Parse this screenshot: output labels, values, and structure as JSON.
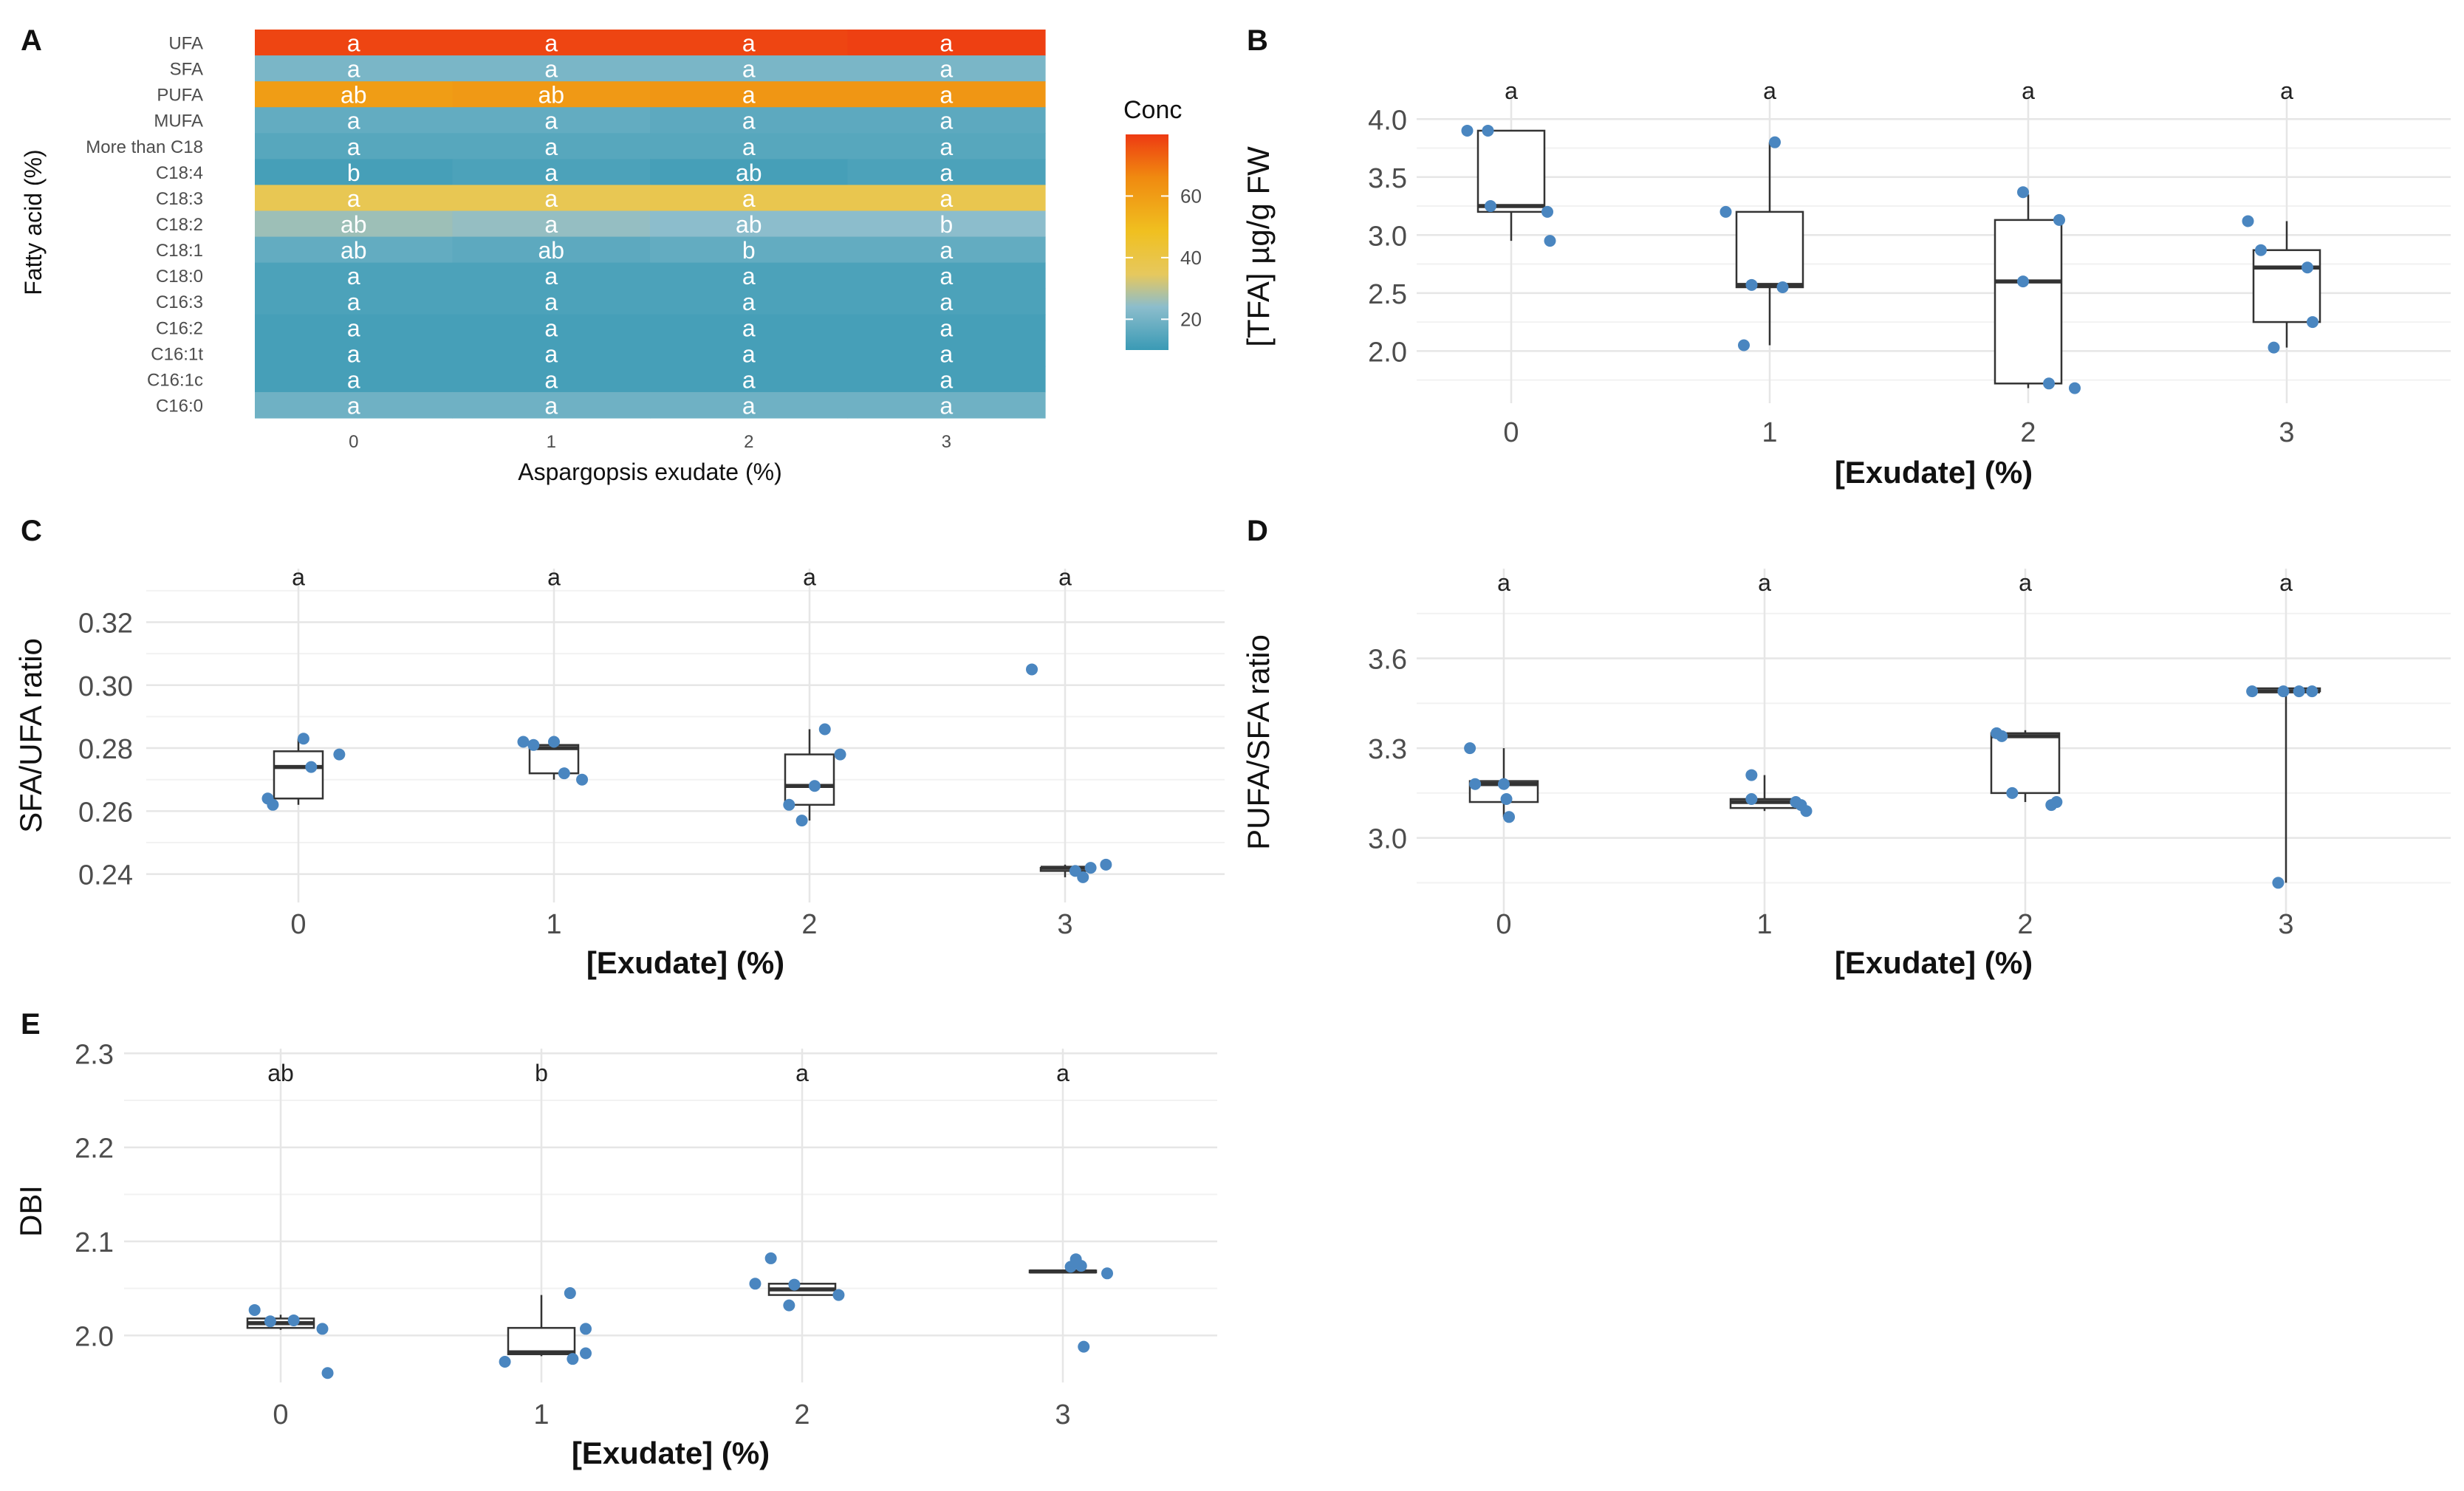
{
  "chart_data": [
    {
      "panel": "A",
      "type": "heatmap",
      "xlabel": "Aspargopsis exudate (%)",
      "ylabel": "Fatty acid (%)",
      "x_categories": [
        "0",
        "1",
        "2",
        "3"
      ],
      "rows": [
        "UFA",
        "SFA",
        "PUFA",
        "MUFA",
        "More than C18",
        "C18:4",
        "C18:3",
        "C18:2",
        "C18:1",
        "C18:0",
        "C16:3",
        "C16:2",
        "C16:1t",
        "C16:1c",
        "C16:0"
      ],
      "values": [
        [
          78,
          78,
          78,
          79
        ],
        [
          21,
          21,
          21,
          21
        ],
        [
          60,
          61,
          62,
          62
        ],
        [
          17,
          17,
          16,
          16
        ],
        [
          15,
          15,
          15,
          15
        ],
        [
          12,
          13,
          12,
          13
        ],
        [
          37,
          37,
          38,
          38
        ],
        [
          26,
          25,
          24,
          24
        ],
        [
          17,
          16,
          17,
          17
        ],
        [
          13,
          13,
          13,
          13
        ],
        [
          13,
          13,
          13,
          13
        ],
        [
          12,
          12,
          12,
          12
        ],
        [
          12,
          12,
          12,
          12
        ],
        [
          12,
          12,
          12,
          12
        ],
        [
          19,
          19,
          19,
          19
        ]
      ],
      "letters": [
        [
          "a",
          "a",
          "a",
          "a"
        ],
        [
          "a",
          "a",
          "a",
          "a"
        ],
        [
          "ab",
          "ab",
          "a",
          "a"
        ],
        [
          "a",
          "a",
          "a",
          "a"
        ],
        [
          "a",
          "a",
          "a",
          "a"
        ],
        [
          "b",
          "a",
          "ab",
          "a"
        ],
        [
          "a",
          "a",
          "a",
          "a"
        ],
        [
          "ab",
          "a",
          "ab",
          "b"
        ],
        [
          "ab",
          "ab",
          "b",
          "a"
        ],
        [
          "a",
          "a",
          "a",
          "a"
        ],
        [
          "a",
          "a",
          "a",
          "a"
        ],
        [
          "a",
          "a",
          "a",
          "a"
        ],
        [
          "a",
          "a",
          "a",
          "a"
        ],
        [
          "a",
          "a",
          "a",
          "a"
        ],
        [
          "a",
          "a",
          "a",
          "a"
        ]
      ],
      "legend": {
        "title": "Conc",
        "ticks": [
          20,
          40,
          60
        ],
        "range": [
          10,
          80
        ]
      }
    },
    {
      "panel": "B",
      "type": "box",
      "xlabel": "[Exudate] (%)",
      "ylabel": "[TFA] µg/g FW",
      "categories": [
        "0",
        "1",
        "2",
        "3"
      ],
      "yticks": [
        2.0,
        2.5,
        3.0,
        3.5,
        4.0
      ],
      "ytick_labels": [
        "2.0",
        "2.5",
        "3.0",
        "3.5",
        "4.0"
      ],
      "ylim": [
        1.55,
        4.25
      ],
      "letter_y": 4.25,
      "letters": [
        "a",
        "a",
        "a",
        "a"
      ],
      "boxes": [
        {
          "q1": 3.2,
          "median": 3.25,
          "q3": 3.9,
          "lo": 2.95,
          "hi": 3.9
        },
        {
          "q1": 2.55,
          "median": 2.57,
          "q3": 3.2,
          "lo": 2.05,
          "hi": 3.8
        },
        {
          "q1": 1.72,
          "median": 2.6,
          "q3": 3.13,
          "lo": 1.68,
          "hi": 3.35
        },
        {
          "q1": 2.25,
          "median": 2.72,
          "q3": 2.87,
          "lo": 2.03,
          "hi": 3.12
        }
      ],
      "points": [
        [
          [
            -0.17,
            3.9
          ],
          [
            -0.09,
            3.9
          ],
          [
            -0.08,
            3.25
          ],
          [
            0.14,
            3.2
          ],
          [
            0.15,
            2.95
          ]
        ],
        [
          [
            -0.17,
            3.2
          ],
          [
            -0.1,
            2.05
          ],
          [
            -0.07,
            2.57
          ],
          [
            0.02,
            3.8
          ],
          [
            0.05,
            2.55
          ]
        ],
        [
          [
            -0.02,
            3.37
          ],
          [
            -0.02,
            2.6
          ],
          [
            0.08,
            1.72
          ],
          [
            0.12,
            3.13
          ],
          [
            0.18,
            1.68
          ]
        ],
        [
          [
            -0.15,
            3.12
          ],
          [
            -0.1,
            2.87
          ],
          [
            -0.05,
            2.03
          ],
          [
            0.08,
            2.72
          ],
          [
            0.1,
            2.25
          ]
        ]
      ]
    },
    {
      "panel": "C",
      "type": "box",
      "xlabel": "[Exudate] (%)",
      "ylabel": "SFA/UFA ratio",
      "categories": [
        "0",
        "1",
        "2",
        "3"
      ],
      "yticks": [
        0.24,
        0.26,
        0.28,
        0.3,
        0.32
      ],
      "ytick_labels": [
        "0.24",
        "0.26",
        "0.28",
        "0.30",
        "0.32"
      ],
      "ylim": [
        0.231,
        0.337
      ],
      "letter_y": 0.3345,
      "letters": [
        "a",
        "a",
        "a",
        "a"
      ],
      "boxes": [
        {
          "q1": 0.264,
          "median": 0.274,
          "q3": 0.279,
          "lo": 0.262,
          "hi": 0.283
        },
        {
          "q1": 0.272,
          "median": 0.28,
          "q3": 0.281,
          "lo": 0.27,
          "hi": 0.282
        },
        {
          "q1": 0.262,
          "median": 0.268,
          "q3": 0.278,
          "lo": 0.257,
          "hi": 0.286
        },
        {
          "q1": 0.241,
          "median": 0.242,
          "q3": 0.242,
          "lo": 0.239,
          "hi": 0.243
        }
      ],
      "points": [
        [
          [
            -0.12,
            0.264
          ],
          [
            -0.1,
            0.262
          ],
          [
            0.02,
            0.283
          ],
          [
            0.05,
            0.274
          ],
          [
            0.16,
            0.278
          ]
        ],
        [
          [
            -0.12,
            0.282
          ],
          [
            -0.08,
            0.281
          ],
          [
            0.0,
            0.282
          ],
          [
            0.04,
            0.272
          ],
          [
            0.11,
            0.27
          ]
        ],
        [
          [
            -0.08,
            0.262
          ],
          [
            -0.03,
            0.257
          ],
          [
            0.02,
            0.268
          ],
          [
            0.06,
            0.286
          ],
          [
            0.12,
            0.278
          ]
        ],
        [
          [
            -0.13,
            0.305
          ],
          [
            0.04,
            0.241
          ],
          [
            0.07,
            0.239
          ],
          [
            0.1,
            0.242
          ],
          [
            0.16,
            0.243
          ]
        ]
      ]
    },
    {
      "panel": "D",
      "type": "box",
      "xlabel": "[Exudate] (%)",
      "ylabel": "PUFA/SFA ratio",
      "categories": [
        "0",
        "1",
        "2",
        "3"
      ],
      "yticks": [
        3.0,
        3.3,
        3.6
      ],
      "ytick_labels": [
        "3.0",
        "3.3",
        "3.6"
      ],
      "ylim": [
        2.74,
        3.9
      ],
      "letter_y": 3.855,
      "letters": [
        "a",
        "a",
        "a",
        "a"
      ],
      "boxes": [
        {
          "q1": 3.12,
          "median": 3.18,
          "q3": 3.19,
          "lo": 3.07,
          "hi": 3.3
        },
        {
          "q1": 3.1,
          "median": 3.12,
          "q3": 3.13,
          "lo": 3.09,
          "hi": 3.21
        },
        {
          "q1": 3.15,
          "median": 3.34,
          "q3": 3.35,
          "lo": 3.12,
          "hi": 3.36
        },
        {
          "q1": 3.49,
          "median": 3.49,
          "q3": 3.5,
          "lo": 2.85,
          "hi": 3.5
        }
      ],
      "points": [
        [
          [
            -0.13,
            3.3
          ],
          [
            -0.11,
            3.18
          ],
          [
            0.0,
            3.18
          ],
          [
            0.01,
            3.13
          ],
          [
            0.02,
            3.07
          ]
        ],
        [
          [
            -0.05,
            3.21
          ],
          [
            -0.05,
            3.13
          ],
          [
            0.12,
            3.12
          ],
          [
            0.14,
            3.11
          ],
          [
            0.16,
            3.09
          ]
        ],
        [
          [
            -0.11,
            3.35
          ],
          [
            -0.09,
            3.34
          ],
          [
            -0.05,
            3.15
          ],
          [
            0.1,
            3.11
          ],
          [
            0.12,
            3.12
          ]
        ],
        [
          [
            -0.13,
            3.49
          ],
          [
            -0.03,
            2.85
          ],
          [
            -0.01,
            3.49
          ],
          [
            0.05,
            3.49
          ],
          [
            0.1,
            3.49
          ]
        ]
      ]
    },
    {
      "panel": "E",
      "type": "box",
      "xlabel": "[Exudate] (%)",
      "ylabel": "DBI",
      "categories": [
        "0",
        "1",
        "2",
        "3"
      ],
      "yticks": [
        2.0,
        2.1,
        2.2,
        2.3
      ],
      "ytick_labels": [
        "2.0",
        "2.1",
        "2.2",
        "2.3"
      ],
      "ylim": [
        1.95,
        2.305
      ],
      "letter_y": 2.28,
      "letters": [
        "ab",
        "b",
        "a",
        "a"
      ],
      "boxes": [
        {
          "q1": 2.008,
          "median": 2.013,
          "q3": 2.018,
          "lo": 2.006,
          "hi": 2.022
        },
        {
          "q1": 1.98,
          "median": 1.982,
          "q3": 2.008,
          "lo": 1.978,
          "hi": 2.043
        },
        {
          "q1": 2.043,
          "median": 2.049,
          "q3": 2.055,
          "lo": 2.043,
          "hi": 2.055
        },
        {
          "q1": 2.067,
          "median": 2.068,
          "q3": 2.069,
          "lo": 2.066,
          "hi": 2.069
        }
      ],
      "points": [
        [
          [
            -0.1,
            2.027
          ],
          [
            -0.04,
            2.015
          ],
          [
            0.05,
            2.016
          ],
          [
            0.16,
            2.007
          ],
          [
            0.18,
            1.96
          ]
        ],
        [
          [
            -0.14,
            1.972
          ],
          [
            0.11,
            2.045
          ],
          [
            0.17,
            2.007
          ],
          [
            0.17,
            1.981
          ],
          [
            0.12,
            1.975
          ]
        ],
        [
          [
            -0.18,
            2.055
          ],
          [
            -0.12,
            2.082
          ],
          [
            -0.05,
            2.032
          ],
          [
            -0.03,
            2.054
          ],
          [
            0.14,
            2.043
          ]
        ],
        [
          [
            0.03,
            2.073
          ],
          [
            0.05,
            2.081
          ],
          [
            0.07,
            2.074
          ],
          [
            0.17,
            2.066
          ],
          [
            0.08,
            1.988
          ]
        ]
      ]
    }
  ]
}
